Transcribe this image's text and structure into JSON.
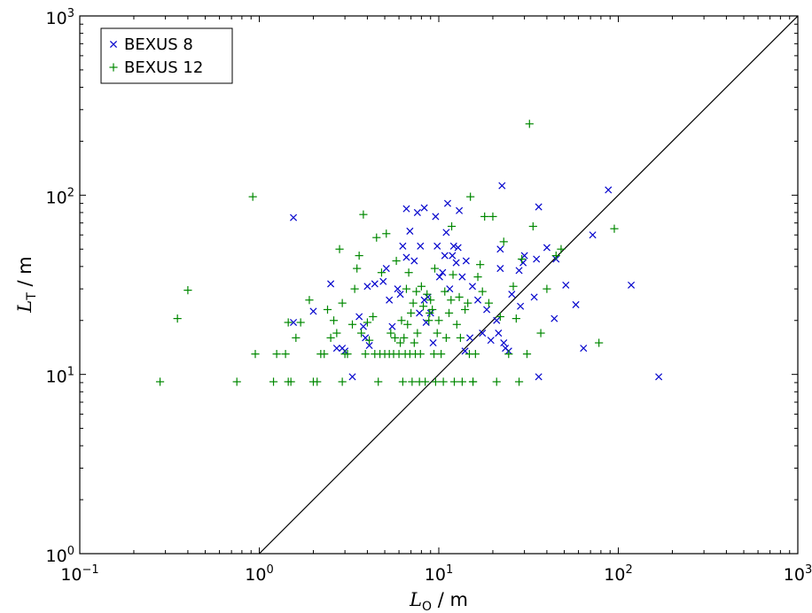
{
  "chart_data": {
    "type": "scatter",
    "title": "",
    "xlabel": "L_O / m",
    "ylabel": "L_T / m",
    "xscale": "log",
    "yscale": "log",
    "xlim": [
      0.1,
      1000
    ],
    "ylim": [
      1,
      1000
    ],
    "grid": false,
    "legend_position": "top-left",
    "x_ticks": [
      {
        "base": "10",
        "exp": "−1",
        "value": 0.1
      },
      {
        "base": "10",
        "exp": "0",
        "value": 1
      },
      {
        "base": "10",
        "exp": "1",
        "value": 10
      },
      {
        "base": "10",
        "exp": "2",
        "value": 100
      },
      {
        "base": "10",
        "exp": "3",
        "value": 1000
      }
    ],
    "y_ticks": [
      {
        "base": "10",
        "exp": "0",
        "value": 1
      },
      {
        "base": "10",
        "exp": "1",
        "value": 10
      },
      {
        "base": "10",
        "exp": "2",
        "value": 100
      },
      {
        "base": "10",
        "exp": "3",
        "value": 1000
      }
    ],
    "reference_line": {
      "type": "identity",
      "x": [
        1,
        1000
      ],
      "y": [
        1,
        1000
      ],
      "color": "#000000"
    },
    "series": [
      {
        "name": "BEXUS 8",
        "marker": "x",
        "color": "#0000cc",
        "points": [
          [
            1.55,
            75
          ],
          [
            2.5,
            32
          ],
          [
            2.0,
            22.5
          ],
          [
            1.55,
            19.5
          ],
          [
            3.6,
            21
          ],
          [
            3.3,
            9.7
          ],
          [
            2.7,
            14
          ],
          [
            2.9,
            14
          ],
          [
            3.0,
            13.5
          ],
          [
            3.9,
            16
          ],
          [
            4.1,
            14.5
          ],
          [
            3.8,
            18.5
          ],
          [
            4.0,
            31
          ],
          [
            4.4,
            32
          ],
          [
            4.9,
            33
          ],
          [
            5.1,
            39
          ],
          [
            5.5,
            18.5
          ],
          [
            5.9,
            30
          ],
          [
            6.3,
            52
          ],
          [
            6.6,
            45
          ],
          [
            6.6,
            84
          ],
          [
            6.9,
            63
          ],
          [
            7.3,
            43
          ],
          [
            7.6,
            80
          ],
          [
            7.9,
            52
          ],
          [
            8.3,
            85
          ],
          [
            8.3,
            26
          ],
          [
            8.7,
            27
          ],
          [
            9.0,
            22
          ],
          [
            9.6,
            76
          ],
          [
            9.8,
            52
          ],
          [
            10.1,
            35
          ],
          [
            10.5,
            37
          ],
          [
            10.8,
            46
          ],
          [
            11.0,
            62
          ],
          [
            11.2,
            90
          ],
          [
            11.5,
            30
          ],
          [
            11.9,
            46
          ],
          [
            12.1,
            52
          ],
          [
            12.5,
            42
          ],
          [
            12.8,
            51
          ],
          [
            13.0,
            82
          ],
          [
            13.5,
            35
          ],
          [
            14.2,
            43
          ],
          [
            14.0,
            13.5
          ],
          [
            14.9,
            16
          ],
          [
            15.4,
            31
          ],
          [
            16.5,
            26
          ],
          [
            17.5,
            17
          ],
          [
            18.5,
            23
          ],
          [
            19.5,
            15.5
          ],
          [
            21.5,
            17
          ],
          [
            22.5,
            113
          ],
          [
            22.0,
            50
          ],
          [
            22.0,
            39
          ],
          [
            23.5,
            14
          ],
          [
            24.5,
            13.5
          ],
          [
            23.0,
            15
          ],
          [
            21.0,
            20
          ],
          [
            25.5,
            28
          ],
          [
            28.0,
            38
          ],
          [
            28.5,
            24
          ],
          [
            29.5,
            42
          ],
          [
            30.0,
            46
          ],
          [
            34.0,
            27
          ],
          [
            35.0,
            44
          ],
          [
            36.0,
            86
          ],
          [
            36.0,
            9.7
          ],
          [
            40.0,
            51
          ],
          [
            44.0,
            20.5
          ],
          [
            45.0,
            44
          ],
          [
            51.0,
            31.5
          ],
          [
            58.0,
            24.5
          ],
          [
            64.0,
            14
          ],
          [
            72.0,
            60
          ],
          [
            88.0,
            107
          ],
          [
            118.0,
            31.5
          ],
          [
            168.0,
            9.7
          ],
          [
            7.8,
            22
          ],
          [
            8.5,
            19.5
          ],
          [
            9.3,
            15
          ],
          [
            6.1,
            28
          ],
          [
            5.3,
            26
          ]
        ]
      },
      {
        "name": "BEXUS 12",
        "marker": "+",
        "color": "#008800",
        "points": [
          [
            0.28,
            9.1
          ],
          [
            0.35,
            20.5
          ],
          [
            0.4,
            29.5
          ],
          [
            0.75,
            9.1
          ],
          [
            0.92,
            98
          ],
          [
            0.95,
            13
          ],
          [
            1.2,
            9.1
          ],
          [
            1.25,
            13
          ],
          [
            1.4,
            13
          ],
          [
            1.45,
            9.1
          ],
          [
            1.5,
            9.1
          ],
          [
            1.45,
            19.5
          ],
          [
            1.6,
            16
          ],
          [
            1.7,
            19.5
          ],
          [
            1.9,
            26
          ],
          [
            2.0,
            9.1
          ],
          [
            2.1,
            9.1
          ],
          [
            2.2,
            13
          ],
          [
            2.3,
            13
          ],
          [
            2.4,
            23
          ],
          [
            2.5,
            16
          ],
          [
            2.6,
            20
          ],
          [
            2.7,
            17
          ],
          [
            2.8,
            50
          ],
          [
            2.9,
            25
          ],
          [
            2.9,
            9.1
          ],
          [
            3.0,
            13
          ],
          [
            3.1,
            13
          ],
          [
            3.3,
            19
          ],
          [
            3.4,
            30
          ],
          [
            3.5,
            39
          ],
          [
            3.6,
            46
          ],
          [
            3.7,
            17
          ],
          [
            3.8,
            78
          ],
          [
            3.9,
            13
          ],
          [
            4.0,
            19.5
          ],
          [
            4.1,
            15.5
          ],
          [
            4.3,
            21
          ],
          [
            4.4,
            13
          ],
          [
            4.5,
            58
          ],
          [
            4.6,
            9.1
          ],
          [
            4.7,
            13
          ],
          [
            4.8,
            37
          ],
          [
            5.0,
            13
          ],
          [
            5.1,
            61
          ],
          [
            5.3,
            13
          ],
          [
            5.4,
            17
          ],
          [
            5.6,
            13
          ],
          [
            5.7,
            16
          ],
          [
            5.8,
            43
          ],
          [
            6.0,
            13
          ],
          [
            6.1,
            15
          ],
          [
            6.2,
            20
          ],
          [
            6.3,
            9.1
          ],
          [
            6.4,
            16
          ],
          [
            6.5,
            13
          ],
          [
            6.6,
            30
          ],
          [
            6.7,
            19
          ],
          [
            6.8,
            37
          ],
          [
            6.9,
            13
          ],
          [
            7.0,
            22
          ],
          [
            7.1,
            9.1
          ],
          [
            7.2,
            25
          ],
          [
            7.4,
            13
          ],
          [
            7.5,
            29
          ],
          [
            7.6,
            17
          ],
          [
            7.8,
            9.1
          ],
          [
            7.9,
            13
          ],
          [
            8.0,
            31
          ],
          [
            8.2,
            24
          ],
          [
            8.4,
            9.1
          ],
          [
            8.6,
            28
          ],
          [
            8.8,
            20
          ],
          [
            9.0,
            26
          ],
          [
            9.2,
            23
          ],
          [
            9.4,
            13
          ],
          [
            9.6,
            9.1
          ],
          [
            9.8,
            17
          ],
          [
            10.0,
            20
          ],
          [
            10.3,
            13
          ],
          [
            10.6,
            9.1
          ],
          [
            11.0,
            16
          ],
          [
            11.4,
            22
          ],
          [
            11.8,
            67
          ],
          [
            12.2,
            9.1
          ],
          [
            12.6,
            19
          ],
          [
            13.0,
            27
          ],
          [
            13.5,
            9.1
          ],
          [
            14.0,
            23
          ],
          [
            14.5,
            25
          ],
          [
            15.0,
            98
          ],
          [
            15.5,
            9.1
          ],
          [
            16.0,
            13
          ],
          [
            16.5,
            35
          ],
          [
            17.0,
            41
          ],
          [
            18.0,
            76
          ],
          [
            19.0,
            25
          ],
          [
            20.0,
            76
          ],
          [
            21.0,
            9.1
          ],
          [
            22.0,
            21
          ],
          [
            23.0,
            55
          ],
          [
            24.5,
            13
          ],
          [
            26.0,
            31
          ],
          [
            27.0,
            20.5
          ],
          [
            28.0,
            9.1
          ],
          [
            29.0,
            44
          ],
          [
            31.0,
            13
          ],
          [
            32.0,
            250
          ],
          [
            33.5,
            67
          ],
          [
            37.0,
            17
          ],
          [
            40.0,
            30
          ],
          [
            45.0,
            46
          ],
          [
            48.0,
            50
          ],
          [
            78.0,
            15
          ],
          [
            95.0,
            65
          ],
          [
            12.0,
            36
          ],
          [
            10.8,
            29
          ],
          [
            9.5,
            39
          ],
          [
            8.9,
            22
          ],
          [
            14.8,
            13
          ],
          [
            15.5,
            9.1
          ],
          [
            13.2,
            16
          ],
          [
            11.7,
            26
          ],
          [
            17.5,
            29
          ],
          [
            7.3,
            15
          ]
        ]
      }
    ]
  }
}
